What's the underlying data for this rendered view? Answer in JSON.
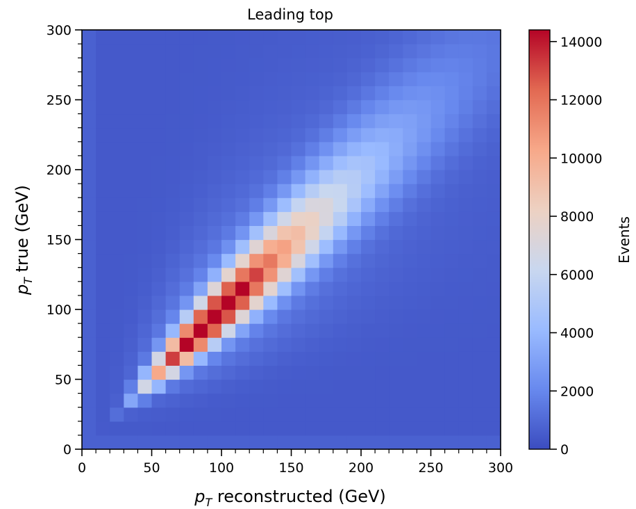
{
  "chart_data": {
    "type": "heatmap",
    "title": "Leading top",
    "xlabel_var": "p",
    "xlabel_sub": "T",
    "xlabel_text": " reconstructed (GeV)",
    "ylabel_var": "p",
    "ylabel_sub": "T",
    "ylabel_text": " true (GeV)",
    "colorbar_label": "Events",
    "xlim": [
      0,
      300
    ],
    "ylim": [
      0,
      300
    ],
    "bin_width": 10,
    "xticks": [
      0,
      50,
      100,
      150,
      200,
      250,
      300
    ],
    "yticks": [
      0,
      50,
      100,
      150,
      200,
      250,
      300
    ],
    "colorbar_ticks": [
      0,
      2000,
      4000,
      6000,
      8000,
      10000,
      12000,
      14000
    ],
    "zlim": [
      0,
      14400
    ],
    "colormap": "coolwarm",
    "colormap_stops": [
      "#3b4cc0",
      "#6889ee",
      "#9abbff",
      "#c9d7ef",
      "#edd1c2",
      "#f7a889",
      "#e26952",
      "#b40426"
    ],
    "peak": {
      "x": 85,
      "y": 95,
      "value": 14400
    }
  }
}
